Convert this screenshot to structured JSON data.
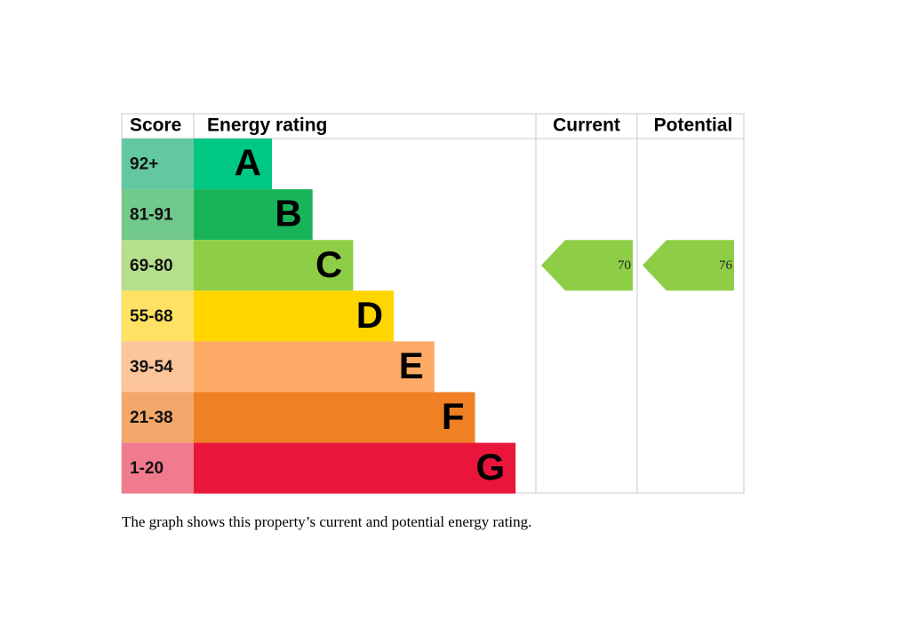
{
  "header": {
    "score": "Score",
    "energy_rating": "Energy rating",
    "current": "Current",
    "potential": "Potential"
  },
  "bands": [
    {
      "score": "92+",
      "letter": "A",
      "score_color": "#63c7a0",
      "bar_color": "#00c781"
    },
    {
      "score": "81-91",
      "letter": "B",
      "score_color": "#72c98c",
      "bar_color": "#19b459"
    },
    {
      "score": "69-80",
      "letter": "C",
      "score_color": "#b5df8b",
      "bar_color": "#8dce46"
    },
    {
      "score": "55-68",
      "letter": "D",
      "score_color": "#ffe263",
      "bar_color": "#ffd500"
    },
    {
      "score": "39-54",
      "letter": "E",
      "score_color": "#fdc59a",
      "bar_color": "#fcaa65"
    },
    {
      "score": "21-38",
      "letter": "F",
      "score_color": "#f2a76b",
      "bar_color": "#ef8023"
    },
    {
      "score": "1-20",
      "letter": "G",
      "score_color": "#f07a8e",
      "bar_color": "#e9153b"
    }
  ],
  "current": {
    "value": 70,
    "color": "#8dce46"
  },
  "potential": {
    "value": 76,
    "color": "#8dce46"
  },
  "caption": "The graph shows this property’s current and potential energy rating."
}
